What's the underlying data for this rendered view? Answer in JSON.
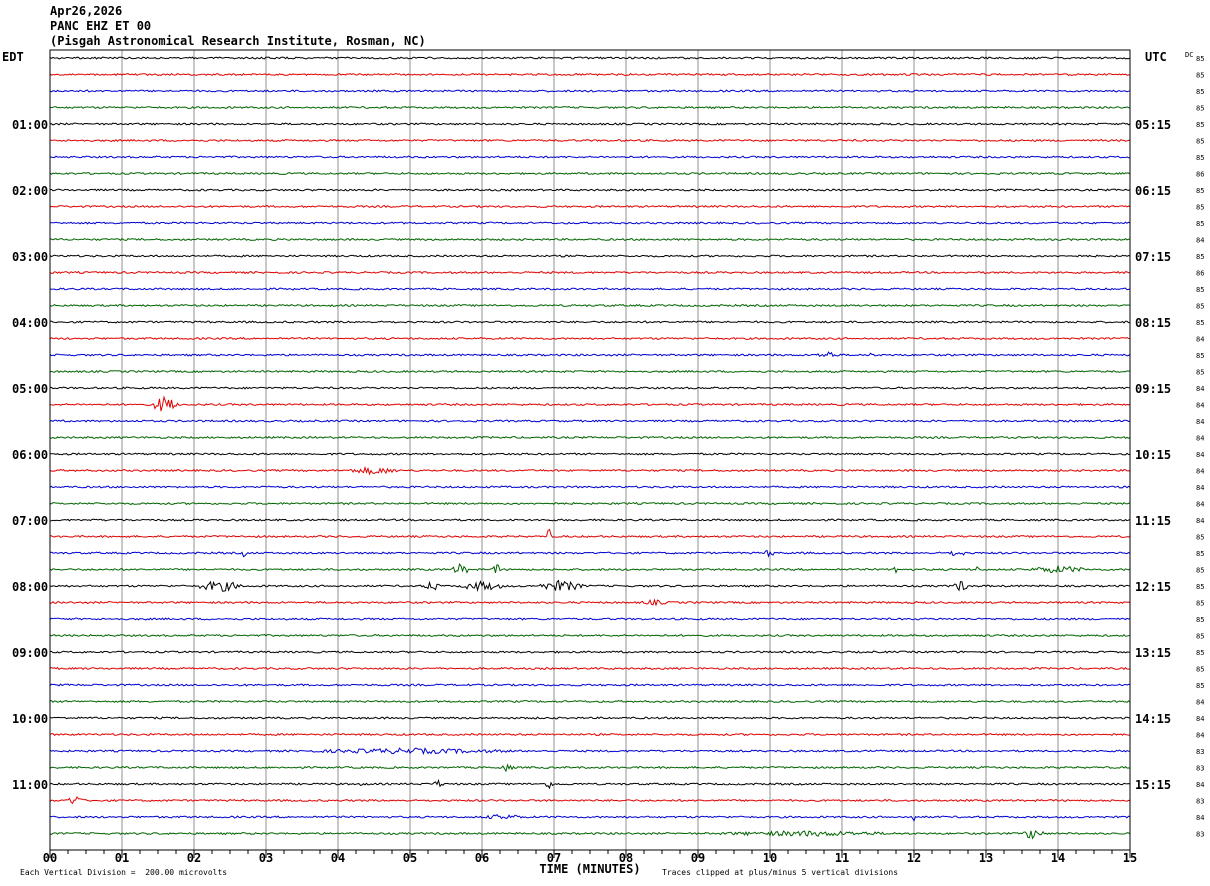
{
  "header": {
    "date": "Apr26,2026",
    "station": "PANC EHZ ET 00",
    "site": "(Pisgah Astronomical Research Institute, Rosman, NC)"
  },
  "labels": {
    "left_tz": "EDT",
    "right_tz": "UTC",
    "dc": "DC",
    "xlabel": "TIME (MINUTES)",
    "scale_note": "Each Vertical Division =  200.00 microvolts",
    "clip_note": "Traces clipped at plus/minus 5 vertical divisions"
  },
  "chart_data": {
    "type": "line",
    "title": "PANC EHZ ET 00",
    "xlabel": "TIME (MINUTES)",
    "xlim": [
      0,
      15
    ],
    "x_ticks": [
      "00",
      "01",
      "02",
      "03",
      "04",
      "05",
      "06",
      "07",
      "08",
      "09",
      "10",
      "11",
      "12",
      "13",
      "14",
      "15"
    ],
    "trace_count": 48,
    "trace_colors": [
      "#000000",
      "#e00000",
      "#0000d0",
      "#006400"
    ],
    "edt_hour_labels": [
      {
        "trace": 4,
        "label": "01:00"
      },
      {
        "trace": 8,
        "label": "02:00"
      },
      {
        "trace": 12,
        "label": "03:00"
      },
      {
        "trace": 16,
        "label": "04:00"
      },
      {
        "trace": 20,
        "label": "05:00"
      },
      {
        "trace": 24,
        "label": "06:00"
      },
      {
        "trace": 28,
        "label": "07:00"
      },
      {
        "trace": 32,
        "label": "08:00"
      },
      {
        "trace": 36,
        "label": "09:00"
      },
      {
        "trace": 40,
        "label": "10:00"
      },
      {
        "trace": 44,
        "label": "11:00"
      }
    ],
    "utc_hour_labels": [
      {
        "trace": 4,
        "label": "05:15"
      },
      {
        "trace": 8,
        "label": "06:15"
      },
      {
        "trace": 12,
        "label": "07:15"
      },
      {
        "trace": 16,
        "label": "08:15"
      },
      {
        "trace": 20,
        "label": "09:15"
      },
      {
        "trace": 24,
        "label": "10:15"
      },
      {
        "trace": 28,
        "label": "11:15"
      },
      {
        "trace": 32,
        "label": "12:15"
      },
      {
        "trace": 36,
        "label": "13:15"
      },
      {
        "trace": 40,
        "label": "14:15"
      },
      {
        "trace": 44,
        "label": "15:15"
      }
    ],
    "dc_offsets": [
      "85",
      "85",
      "85",
      "85",
      "85",
      "85",
      "85",
      "86",
      "85",
      "85",
      "85",
      "84",
      "85",
      "86",
      "85",
      "85",
      "85",
      "84",
      "85",
      "85",
      "84",
      "84",
      "84",
      "84",
      "84",
      "84",
      "84",
      "84",
      "84",
      "85",
      "85",
      "85",
      "85",
      "85",
      "85",
      "85",
      "85",
      "85",
      "85",
      "84",
      "84",
      "84",
      "83",
      "83",
      "84",
      "83",
      "84",
      "83"
    ],
    "events": [
      {
        "trace": 21,
        "t_min": 1.6,
        "amplitude": 9,
        "duration_min": 0.35
      },
      {
        "trace": 18,
        "t_min": 10.8,
        "amplitude": 4,
        "duration_min": 0.3
      },
      {
        "trace": 18,
        "t_min": 11.4,
        "amplitude": 4,
        "duration_min": 0.05
      },
      {
        "trace": 25,
        "t_min": 4.5,
        "amplitude": 4,
        "duration_min": 0.7
      },
      {
        "trace": 29,
        "t_min": 6.93,
        "amplitude": 9,
        "duration_min": 0.05
      },
      {
        "trace": 30,
        "t_min": 2.7,
        "amplitude": 5,
        "duration_min": 0.05
      },
      {
        "trace": 30,
        "t_min": 10.0,
        "amplitude": 4,
        "duration_min": 0.2
      },
      {
        "trace": 30,
        "t_min": 12.6,
        "amplitude": 4,
        "duration_min": 0.25
      },
      {
        "trace": 31,
        "t_min": 5.7,
        "amplitude": 6,
        "duration_min": 0.25
      },
      {
        "trace": 31,
        "t_min": 6.2,
        "amplitude": 7,
        "duration_min": 0.1
      },
      {
        "trace": 31,
        "t_min": 11.75,
        "amplitude": 6,
        "duration_min": 0.05
      },
      {
        "trace": 31,
        "t_min": 12.9,
        "amplitude": 7,
        "duration_min": 0.05
      },
      {
        "trace": 31,
        "t_min": 14.0,
        "amplitude": 4,
        "duration_min": 0.8
      },
      {
        "trace": 32,
        "t_min": 2.35,
        "amplitude": 6,
        "duration_min": 0.6
      },
      {
        "trace": 32,
        "t_min": 5.3,
        "amplitude": 6,
        "duration_min": 0.2
      },
      {
        "trace": 32,
        "t_min": 6.0,
        "amplitude": 5,
        "duration_min": 0.6
      },
      {
        "trace": 32,
        "t_min": 7.1,
        "amplitude": 6,
        "duration_min": 0.6
      },
      {
        "trace": 32,
        "t_min": 12.65,
        "amplitude": 6,
        "duration_min": 0.2
      },
      {
        "trace": 33,
        "t_min": 8.4,
        "amplitude": 3,
        "duration_min": 0.4
      },
      {
        "trace": 42,
        "t_min": 5.0,
        "amplitude": 3,
        "duration_min": 3.0
      },
      {
        "trace": 43,
        "t_min": 6.35,
        "amplitude": 4,
        "duration_min": 0.2
      },
      {
        "trace": 44,
        "t_min": 4.3,
        "amplitude": 4,
        "duration_min": 0.1
      },
      {
        "trace": 44,
        "t_min": 5.4,
        "amplitude": 4,
        "duration_min": 0.15
      },
      {
        "trace": 44,
        "t_min": 6.95,
        "amplitude": 6,
        "duration_min": 0.12
      },
      {
        "trace": 45,
        "t_min": 0.35,
        "amplitude": 5,
        "duration_min": 0.25
      },
      {
        "trace": 46,
        "t_min": 6.3,
        "amplitude": 3,
        "duration_min": 0.6
      },
      {
        "trace": 46,
        "t_min": 12.0,
        "amplitude": 4,
        "duration_min": 0.1
      },
      {
        "trace": 47,
        "t_min": 10.5,
        "amplitude": 3,
        "duration_min": 2.5
      },
      {
        "trace": 47,
        "t_min": 13.65,
        "amplitude": 6,
        "duration_min": 0.3
      }
    ]
  }
}
